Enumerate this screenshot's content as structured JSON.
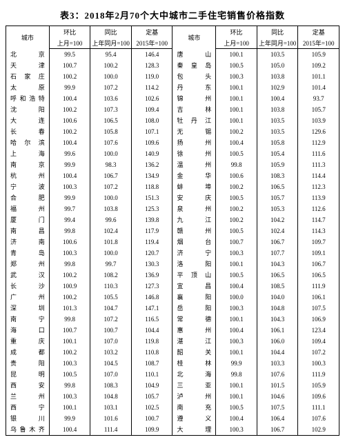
{
  "title": "表3：2018年2月70个大中城市二手住宅销售价格指数",
  "headers": {
    "city": "城市",
    "mom": "环比",
    "yoy": "同比",
    "base": "定基",
    "mom_sub": "上月=100",
    "yoy_sub": "上年同月=100",
    "base_sub": "2015年=100"
  },
  "rows": [
    {
      "c1": "北　　京",
      "m1": "99.5",
      "y1": "95.4",
      "b1": "146.4",
      "c2": "唐　　山",
      "m2": "100.1",
      "y2": "103.5",
      "b2": "105.9"
    },
    {
      "c1": "天　　津",
      "m1": "100.7",
      "y1": "100.2",
      "b1": "128.3",
      "c2": "秦 皇 岛",
      "m2": "100.5",
      "y2": "105.0",
      "b2": "109.2"
    },
    {
      "c1": "石 家 庄",
      "m1": "100.2",
      "y1": "100.0",
      "b1": "119.0",
      "c2": "包　　头",
      "m2": "100.3",
      "y2": "103.8",
      "b2": "101.1"
    },
    {
      "c1": "太　　原",
      "m1": "99.9",
      "y1": "107.2",
      "b1": "114.2",
      "c2": "丹　　东",
      "m2": "100.1",
      "y2": "102.9",
      "b2": "101.4"
    },
    {
      "c1": "呼和浩特",
      "m1": "100.4",
      "y1": "103.6",
      "b1": "102.6",
      "c2": "锦　　州",
      "m2": "100.1",
      "y2": "100.4",
      "b2": "93.7"
    },
    {
      "c1": "沈　　阳",
      "m1": "100.2",
      "y1": "107.3",
      "b1": "109.4",
      "c2": "吉　　林",
      "m2": "100.1",
      "y2": "103.8",
      "b2": "105.7"
    },
    {
      "c1": "大　　连",
      "m1": "100.6",
      "y1": "106.5",
      "b1": "108.0",
      "c2": "牡 丹 江",
      "m2": "100.1",
      "y2": "103.5",
      "b2": "103.9"
    },
    {
      "c1": "长　　春",
      "m1": "100.2",
      "y1": "105.8",
      "b1": "107.1",
      "c2": "无　　锡",
      "m2": "100.2",
      "y2": "103.5",
      "b2": "129.6"
    },
    {
      "c1": "哈 尔 滨",
      "m1": "100.4",
      "y1": "107.6",
      "b1": "109.6",
      "c2": "扬　　州",
      "m2": "100.4",
      "y2": "105.8",
      "b2": "112.9"
    },
    {
      "c1": "上　　海",
      "m1": "99.6",
      "y1": "100.0",
      "b1": "140.9",
      "c2": "徐　　州",
      "m2": "100.5",
      "y2": "105.4",
      "b2": "111.6"
    },
    {
      "c1": "南　　京",
      "m1": "99.9",
      "y1": "98.3",
      "b1": "136.2",
      "c2": "温　　州",
      "m2": "99.8",
      "y2": "105.9",
      "b2": "111.3"
    },
    {
      "c1": "杭　　州",
      "m1": "100.4",
      "y1": "106.7",
      "b1": "134.9",
      "c2": "金　　华",
      "m2": "100.6",
      "y2": "108.3",
      "b2": "114.4"
    },
    {
      "c1": "宁　　波",
      "m1": "100.3",
      "y1": "107.2",
      "b1": "118.8",
      "c2": "蚌　　埠",
      "m2": "100.2",
      "y2": "106.5",
      "b2": "112.3"
    },
    {
      "c1": "合　　肥",
      "m1": "99.9",
      "y1": "100.0",
      "b1": "151.3",
      "c2": "安　　庆",
      "m2": "100.5",
      "y2": "105.7",
      "b2": "113.9"
    },
    {
      "c1": "福　　州",
      "m1": "99.7",
      "y1": "103.8",
      "b1": "125.3",
      "c2": "泉　　州",
      "m2": "100.2",
      "y2": "105.3",
      "b2": "112.6"
    },
    {
      "c1": "厦　　门",
      "m1": "99.4",
      "y1": "99.6",
      "b1": "139.8",
      "c2": "九　　江",
      "m2": "100.2",
      "y2": "104.2",
      "b2": "114.7"
    },
    {
      "c1": "南　　昌",
      "m1": "99.8",
      "y1": "102.4",
      "b1": "117.9",
      "c2": "赣　　州",
      "m2": "100.5",
      "y2": "102.4",
      "b2": "114.3"
    },
    {
      "c1": "济　　南",
      "m1": "100.6",
      "y1": "101.8",
      "b1": "119.4",
      "c2": "烟　　台",
      "m2": "100.7",
      "y2": "106.7",
      "b2": "109.7"
    },
    {
      "c1": "青　　岛",
      "m1": "100.3",
      "y1": "100.0",
      "b1": "120.7",
      "c2": "济　　宁",
      "m2": "100.3",
      "y2": "107.7",
      "b2": "109.1"
    },
    {
      "c1": "郑　　州",
      "m1": "99.8",
      "y1": "99.7",
      "b1": "130.3",
      "c2": "洛　　阳",
      "m2": "100.1",
      "y2": "104.3",
      "b2": "106.7"
    },
    {
      "c1": "武　　汉",
      "m1": "100.2",
      "y1": "108.2",
      "b1": "136.9",
      "c2": "平 顶 山",
      "m2": "100.5",
      "y2": "106.5",
      "b2": "106.5"
    },
    {
      "c1": "长　　沙",
      "m1": "100.9",
      "y1": "110.3",
      "b1": "127.3",
      "c2": "宜　　昌",
      "m2": "100.4",
      "y2": "108.5",
      "b2": "111.9"
    },
    {
      "c1": "广　　州",
      "m1": "100.2",
      "y1": "105.5",
      "b1": "146.8",
      "c2": "襄　　阳",
      "m2": "100.0",
      "y2": "104.0",
      "b2": "106.1"
    },
    {
      "c1": "深　　圳",
      "m1": "101.3",
      "y1": "104.7",
      "b1": "147.1",
      "c2": "岳　　阳",
      "m2": "100.3",
      "y2": "104.8",
      "b2": "107.5"
    },
    {
      "c1": "南　　宁",
      "m1": "99.8",
      "y1": "107.2",
      "b1": "116.5",
      "c2": "常　　德",
      "m2": "100.1",
      "y2": "104.3",
      "b2": "106.9"
    },
    {
      "c1": "海　　口",
      "m1": "100.7",
      "y1": "100.7",
      "b1": "104.4",
      "c2": "惠　　州",
      "m2": "100.4",
      "y2": "106.1",
      "b2": "123.4"
    },
    {
      "c1": "重　　庆",
      "m1": "100.1",
      "y1": "107.0",
      "b1": "119.8",
      "c2": "湛　　江",
      "m2": "100.3",
      "y2": "106.0",
      "b2": "109.4"
    },
    {
      "c1": "成　　都",
      "m1": "100.2",
      "y1": "103.2",
      "b1": "110.8",
      "c2": "韶　　关",
      "m2": "100.1",
      "y2": "104.4",
      "b2": "107.2"
    },
    {
      "c1": "贵　　阳",
      "m1": "100.3",
      "y1": "104.5",
      "b1": "108.7",
      "c2": "桂　　林",
      "m2": "99.9",
      "y2": "103.3",
      "b2": "100.3"
    },
    {
      "c1": "昆　　明",
      "m1": "100.5",
      "y1": "107.0",
      "b1": "110.1",
      "c2": "北　　海",
      "m2": "99.8",
      "y2": "107.6",
      "b2": "111.9"
    },
    {
      "c1": "西　　安",
      "m1": "99.8",
      "y1": "108.3",
      "b1": "104.9",
      "c2": "三　　亚",
      "m2": "100.1",
      "y2": "101.5",
      "b2": "105.9"
    },
    {
      "c1": "兰　　州",
      "m1": "100.3",
      "y1": "104.8",
      "b1": "105.7",
      "c2": "泸　　州",
      "m2": "100.1",
      "y2": "104.6",
      "b2": "109.6"
    },
    {
      "c1": "西　　宁",
      "m1": "100.1",
      "y1": "103.1",
      "b1": "102.5",
      "c2": "南　　充",
      "m2": "100.5",
      "y2": "107.5",
      "b2": "111.1"
    },
    {
      "c1": "银　　川",
      "m1": "99.9",
      "y1": "101.6",
      "b1": "100.7",
      "c2": "遵　　义",
      "m2": "100.4",
      "y2": "106.4",
      "b2": "107.6"
    },
    {
      "c1": "乌鲁木齐",
      "m1": "100.4",
      "y1": "111.4",
      "b1": "109.9",
      "c2": "大　　理",
      "m2": "100.3",
      "y2": "106.7",
      "b2": "102.9"
    }
  ]
}
